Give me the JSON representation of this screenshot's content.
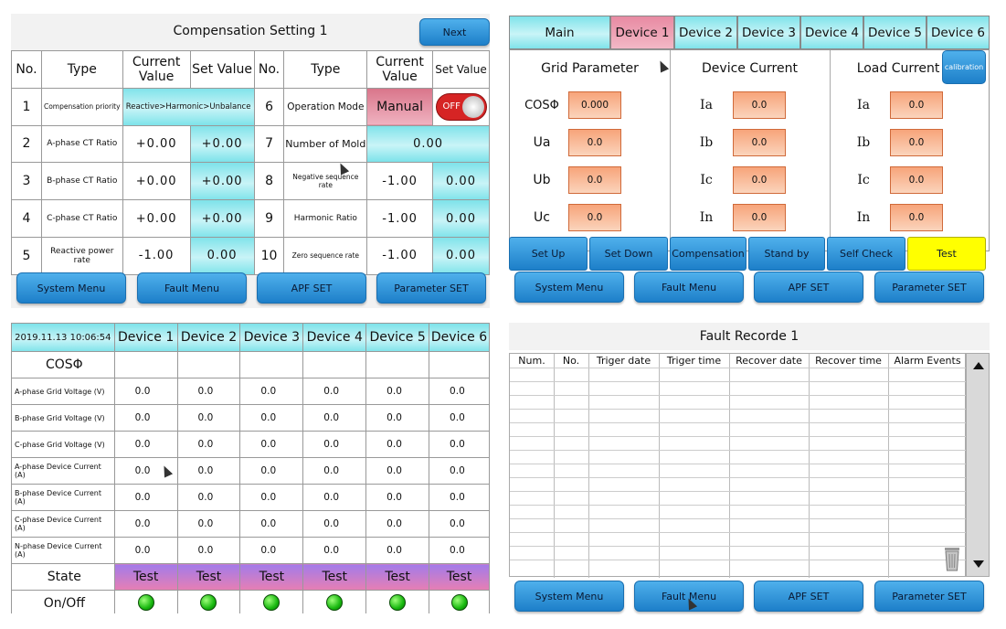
{
  "comp": {
    "title": "Compensation Setting 1",
    "next": "Next",
    "headers": [
      "No.",
      "Type",
      "Current Value",
      "Set Value",
      "No.",
      "Type",
      "Current Value",
      "Set Value"
    ],
    "rows": [
      {
        "n1": "1",
        "t1": "Compensation priority",
        "merged": "Reactive>Harmonic>Unbalance",
        "n2": "6",
        "t2": "Operation Mode",
        "mode": "Manual",
        "toggle": "OFF"
      },
      {
        "n1": "2",
        "t1": "A-phase CT Ratio",
        "c1": "+0.00",
        "s1": "+0.00",
        "n2": "7",
        "t2": "Number of Mold",
        "merged2": "0.00"
      },
      {
        "n1": "3",
        "t1": "B-phase CT Ratio",
        "c1": "+0.00",
        "s1": "+0.00",
        "n2": "8",
        "t2": "Negative sequence rate",
        "c2": "-1.00",
        "s2": "0.00"
      },
      {
        "n1": "4",
        "t1": "C-phase CT Ratio",
        "c1": "+0.00",
        "s1": "+0.00",
        "n2": "9",
        "t2": "Harmonic Ratio",
        "c2": "-1.00",
        "s2": "0.00"
      },
      {
        "n1": "5",
        "t1": "Reactive power rate",
        "c1": "-1.00",
        "s1": "0.00",
        "n2": "10",
        "t2": "Zero sequence rate",
        "c2": "-1.00",
        "s2": "0.00"
      }
    ]
  },
  "nav": {
    "system": "System Menu",
    "fault": "Fault Menu",
    "apf": "APF SET",
    "param": "Parameter SET"
  },
  "dev": {
    "tabs": [
      "Main",
      "Device 1",
      "Device 2",
      "Device 3",
      "Device 4",
      "Device 5",
      "Device 6"
    ],
    "grid_title": "Grid Parameter",
    "device_title": "Device Current",
    "load_title": "Load Current",
    "calibration": "calibration",
    "grid": [
      {
        "l": "COSΦ",
        "v": "0.000"
      },
      {
        "l": "Ua",
        "v": "0.0"
      },
      {
        "l": "Ub",
        "v": "0.0"
      },
      {
        "l": "Uc",
        "v": "0.0"
      }
    ],
    "device": [
      {
        "l": "Ia",
        "v": "0.0"
      },
      {
        "l": "Ib",
        "v": "0.0"
      },
      {
        "l": "Ic",
        "v": "0.0"
      },
      {
        "l": "In",
        "v": "0.0"
      }
    ],
    "load": [
      {
        "l": "Ia",
        "v": "0.0"
      },
      {
        "l": "Ib",
        "v": "0.0"
      },
      {
        "l": "Ic",
        "v": "0.0"
      },
      {
        "l": "In",
        "v": "0.0"
      }
    ],
    "actions": [
      "Set Up",
      "Set Down",
      "Compensation",
      "Stand by",
      "Self Check",
      "Test"
    ]
  },
  "table": {
    "datetime": "2019.11.13 10:06:54",
    "devices": [
      "Device 1",
      "Device 2",
      "Device 3",
      "Device 4",
      "Device 5",
      "Device 6"
    ],
    "cos": "COSΦ",
    "rows": [
      {
        "label": "A-phase Grid Voltage (V)",
        "vals": [
          "0.0",
          "0.0",
          "0.0",
          "0.0",
          "0.0",
          "0.0"
        ]
      },
      {
        "label": "B-phase Grid Voltage (V)",
        "vals": [
          "0.0",
          "0.0",
          "0.0",
          "0.0",
          "0.0",
          "0.0"
        ]
      },
      {
        "label": "C-phase Grid Voltage (V)",
        "vals": [
          "0.0",
          "0.0",
          "0.0",
          "0.0",
          "0.0",
          "0.0"
        ]
      },
      {
        "label": "A-phase Device Current (A)",
        "vals": [
          "0.0",
          "0.0",
          "0.0",
          "0.0",
          "0.0",
          "0.0"
        ]
      },
      {
        "label": "B-phase Device Current (A)",
        "vals": [
          "0.0",
          "0.0",
          "0.0",
          "0.0",
          "0.0",
          "0.0"
        ]
      },
      {
        "label": "C-phase Device Current (A)",
        "vals": [
          "0.0",
          "0.0",
          "0.0",
          "0.0",
          "0.0",
          "0.0"
        ]
      },
      {
        "label": "N-phase Device Current (A)",
        "vals": [
          "0.0",
          "0.0",
          "0.0",
          "0.0",
          "0.0",
          "0.0"
        ]
      }
    ],
    "state": "State",
    "state_vals": [
      "Test",
      "Test",
      "Test",
      "Test",
      "Test",
      "Test"
    ],
    "onoff": "On/Off"
  },
  "fault": {
    "title": "Fault Recorde 1",
    "headers": [
      "Num.",
      "No.",
      "Triger date",
      "Triger time",
      "Recover date",
      "Recover time",
      "Alarm Events"
    ]
  },
  "colors": {
    "cyan": "#7fe3ea",
    "pink": "#e88aa2",
    "orange": "#f7a47a",
    "blue_button": "#1d7fc9",
    "yellow": "#ffff00",
    "led_green": "#18b80f"
  }
}
